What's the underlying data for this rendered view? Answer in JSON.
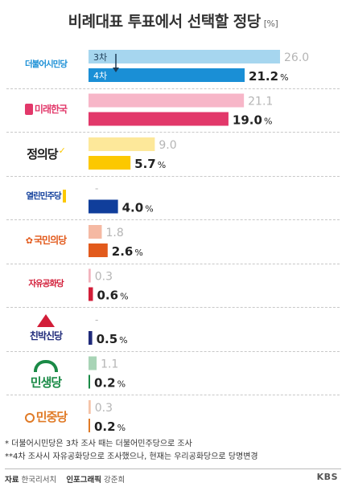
{
  "title": "비례대표 투표에서 선택할 정당",
  "unit": "[%]",
  "chart_data": {
    "type": "bar",
    "orientation": "horizontal",
    "series": [
      {
        "name": "3차"
      },
      {
        "name": "4차"
      }
    ],
    "parties": [
      {
        "name": "더불어시민당",
        "prev": 26.0,
        "curr": 21.2,
        "prev_label": "26.0",
        "curr_label": "21.2",
        "prev_color": "#a6d6ef",
        "curr_color": "#1a8fd6",
        "series_tags": [
          "3차",
          "4차"
        ]
      },
      {
        "name": "미래한국",
        "prev": 21.1,
        "curr": 19.0,
        "prev_label": "21.1",
        "curr_label": "19.0",
        "prev_color": "#f7b6c8",
        "curr_color": "#e2386a"
      },
      {
        "name": "정의당",
        "prev": 9.0,
        "curr": 5.7,
        "prev_label": "9.0",
        "curr_label": "5.7",
        "prev_color": "#fde89a",
        "curr_color": "#fcc800"
      },
      {
        "name": "열린민주당",
        "prev": null,
        "curr": 4.0,
        "prev_label": "-",
        "curr_label": "4.0",
        "prev_color": "#9fb0d8",
        "curr_color": "#103e9b"
      },
      {
        "name": "국민의당",
        "prev": 1.8,
        "curr": 2.6,
        "prev_label": "1.8",
        "curr_label": "2.6",
        "prev_color": "#f5b9a3",
        "curr_color": "#e25a1c"
      },
      {
        "name": "자유공화당",
        "prev": 0.3,
        "curr": 0.6,
        "prev_label": "0.3",
        "curr_label": "0.6",
        "prev_color": "#f2b3bd",
        "curr_color": "#d21d38"
      },
      {
        "name": "친박신당",
        "prev": null,
        "curr": 0.5,
        "prev_label": "-",
        "curr_label": "0.5",
        "prev_color": "#a9a9cf",
        "curr_color": "#1f2a7a"
      },
      {
        "name": "민생당",
        "prev": 1.1,
        "curr": 0.2,
        "prev_label": "1.1",
        "curr_label": "0.2",
        "prev_color": "#a8d4b6",
        "curr_color": "#1a8a46"
      },
      {
        "name": "민중당",
        "prev": 0.3,
        "curr": 0.2,
        "prev_label": "0.3",
        "curr_label": "0.2",
        "prev_color": "#f5c3a8",
        "curr_color": "#e07a26"
      }
    ],
    "xlim": [
      0,
      26.0
    ]
  },
  "logo_colors": {
    "더불어시민당": "#1a8fd6",
    "미래한국": "#e2386a",
    "정의당": "#1d1d1d",
    "정의당_accent": "#fcc800",
    "열린민주당": "#103e9b",
    "국민의당": "#e25a1c",
    "자유공화당": "#d21d38",
    "친박신당": "#1f2a7a",
    "민생당": "#1a8a46",
    "민중당": "#e07a26"
  },
  "footnotes": [
    "* 더불어시민당은 3차 조사 때는 더불어민주당으로 조사",
    "**4차 조사시 자유공화당으로 조사했으나, 현재는 우리공화당으로 당명변경"
  ],
  "credits": {
    "source_label": "자료",
    "source": "한국리서치",
    "graphic_label": "인포그래픽",
    "graphic": "강준희",
    "brand": "KBS"
  }
}
